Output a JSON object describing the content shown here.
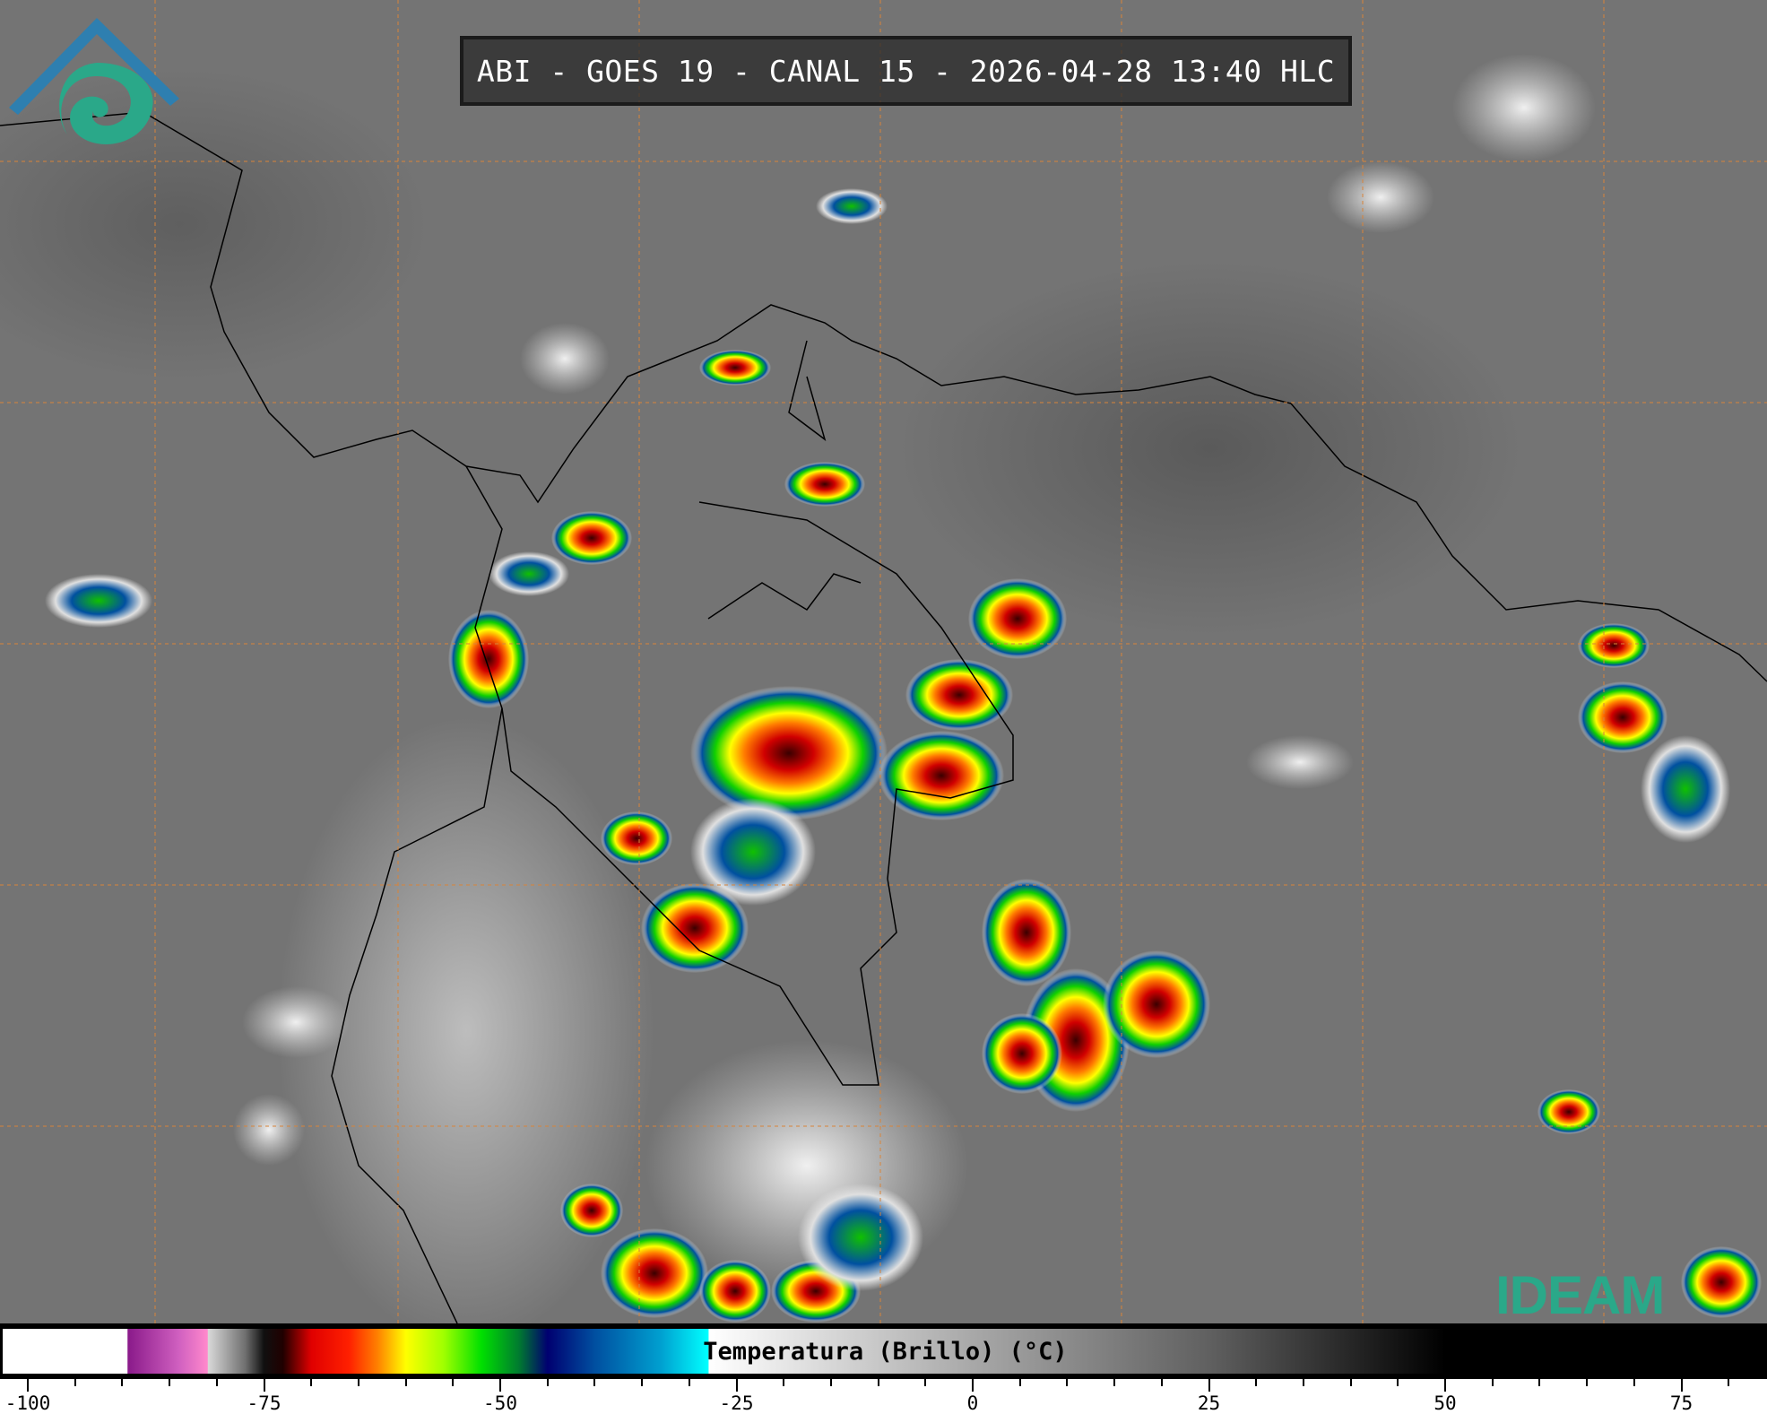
{
  "header": {
    "title": "ABI - GOES 19 - CANAL 15 - 2026-04-28 13:40 HLC"
  },
  "logo": {
    "text": "IDEAM",
    "color": "#2aa889"
  },
  "colorbar": {
    "label": "Temperatura (Brillo) (°C)",
    "range": [
      -102,
      84
    ],
    "major_ticks": [
      -100,
      -75,
      -50,
      -25,
      0,
      25,
      50,
      75
    ],
    "minor_step": 5,
    "stops": [
      {
        "t": -102,
        "color": "#ffffff"
      },
      {
        "t": -89.5,
        "color": "#ffffff"
      },
      {
        "t": -89.4,
        "color": "#8a1a8a"
      },
      {
        "t": -84,
        "color": "#d060c0"
      },
      {
        "t": -81,
        "color": "#ff88cc"
      },
      {
        "t": -80.9,
        "color": "#d8d8d8"
      },
      {
        "t": -77,
        "color": "#707070"
      },
      {
        "t": -75,
        "color": "#101010"
      },
      {
        "t": -73,
        "color": "#200000"
      },
      {
        "t": -70,
        "color": "#e00000"
      },
      {
        "t": -66,
        "color": "#ff2000"
      },
      {
        "t": -63,
        "color": "#ff8000"
      },
      {
        "t": -60,
        "color": "#ffff00"
      },
      {
        "t": -56,
        "color": "#a0ff00"
      },
      {
        "t": -52,
        "color": "#00e000"
      },
      {
        "t": -48,
        "color": "#007a30"
      },
      {
        "t": -45,
        "color": "#000070"
      },
      {
        "t": -40,
        "color": "#004fa0"
      },
      {
        "t": -33,
        "color": "#00a0d0"
      },
      {
        "t": -28,
        "color": "#00ffff"
      },
      {
        "t": -27.9,
        "color": "#ffffff"
      },
      {
        "t": 0,
        "color": "#a8a8a8"
      },
      {
        "t": 25,
        "color": "#606060"
      },
      {
        "t": 50,
        "color": "#000000"
      },
      {
        "t": 84,
        "color": "#000000"
      }
    ]
  },
  "map": {
    "graticule_color": "#d8843a",
    "background_color": "#747474",
    "coastline_color": "#000000"
  }
}
